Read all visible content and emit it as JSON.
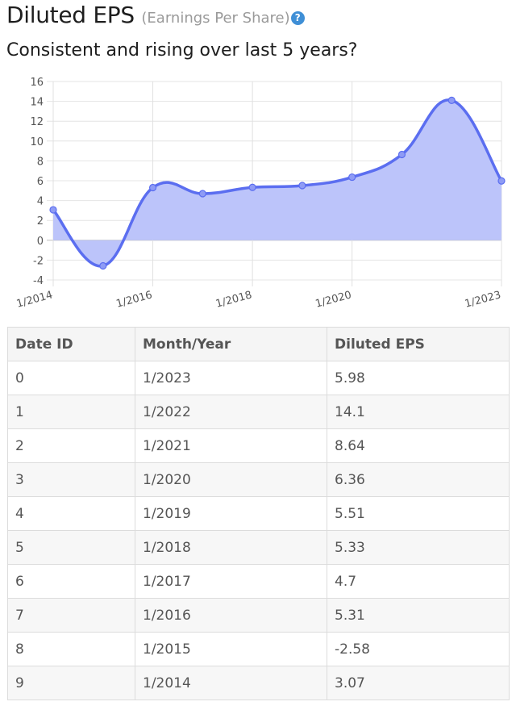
{
  "header": {
    "title": "Diluted EPS",
    "subtitle_paren": "(Earnings Per Share)",
    "help_icon": "?",
    "question": "Consistent and rising over last 5 years?"
  },
  "chart_data": {
    "type": "area",
    "title": "Diluted EPS",
    "xlabel": "",
    "ylabel": "",
    "x": [
      "1/2014",
      "1/2015",
      "1/2016",
      "1/2017",
      "1/2018",
      "1/2019",
      "1/2020",
      "1/2021",
      "1/2022",
      "1/2023"
    ],
    "values": [
      3.07,
      -2.58,
      5.31,
      4.7,
      5.33,
      5.51,
      6.36,
      8.64,
      14.1,
      5.98
    ],
    "ylim": [
      -4,
      16
    ],
    "yticks": [
      16,
      14,
      12,
      10,
      8,
      6,
      4,
      2,
      0,
      -2,
      -4
    ],
    "xtick_labels": [
      "1/2014",
      "1/2016",
      "1/2018",
      "1/2020",
      "1/2023"
    ],
    "grid": true,
    "line_color": "#5b6ef0",
    "fill_color": "#bcc4fa"
  },
  "table": {
    "headers": [
      "Date ID",
      "Month/Year",
      "Diluted EPS"
    ],
    "rows": [
      [
        "0",
        "1/2023",
        "5.98"
      ],
      [
        "1",
        "1/2022",
        "14.1"
      ],
      [
        "2",
        "1/2021",
        "8.64"
      ],
      [
        "3",
        "1/2020",
        "6.36"
      ],
      [
        "4",
        "1/2019",
        "5.51"
      ],
      [
        "5",
        "1/2018",
        "5.33"
      ],
      [
        "6",
        "1/2017",
        "4.7"
      ],
      [
        "7",
        "1/2016",
        "5.31"
      ],
      [
        "8",
        "1/2015",
        "-2.58"
      ],
      [
        "9",
        "1/2014",
        "3.07"
      ]
    ]
  }
}
